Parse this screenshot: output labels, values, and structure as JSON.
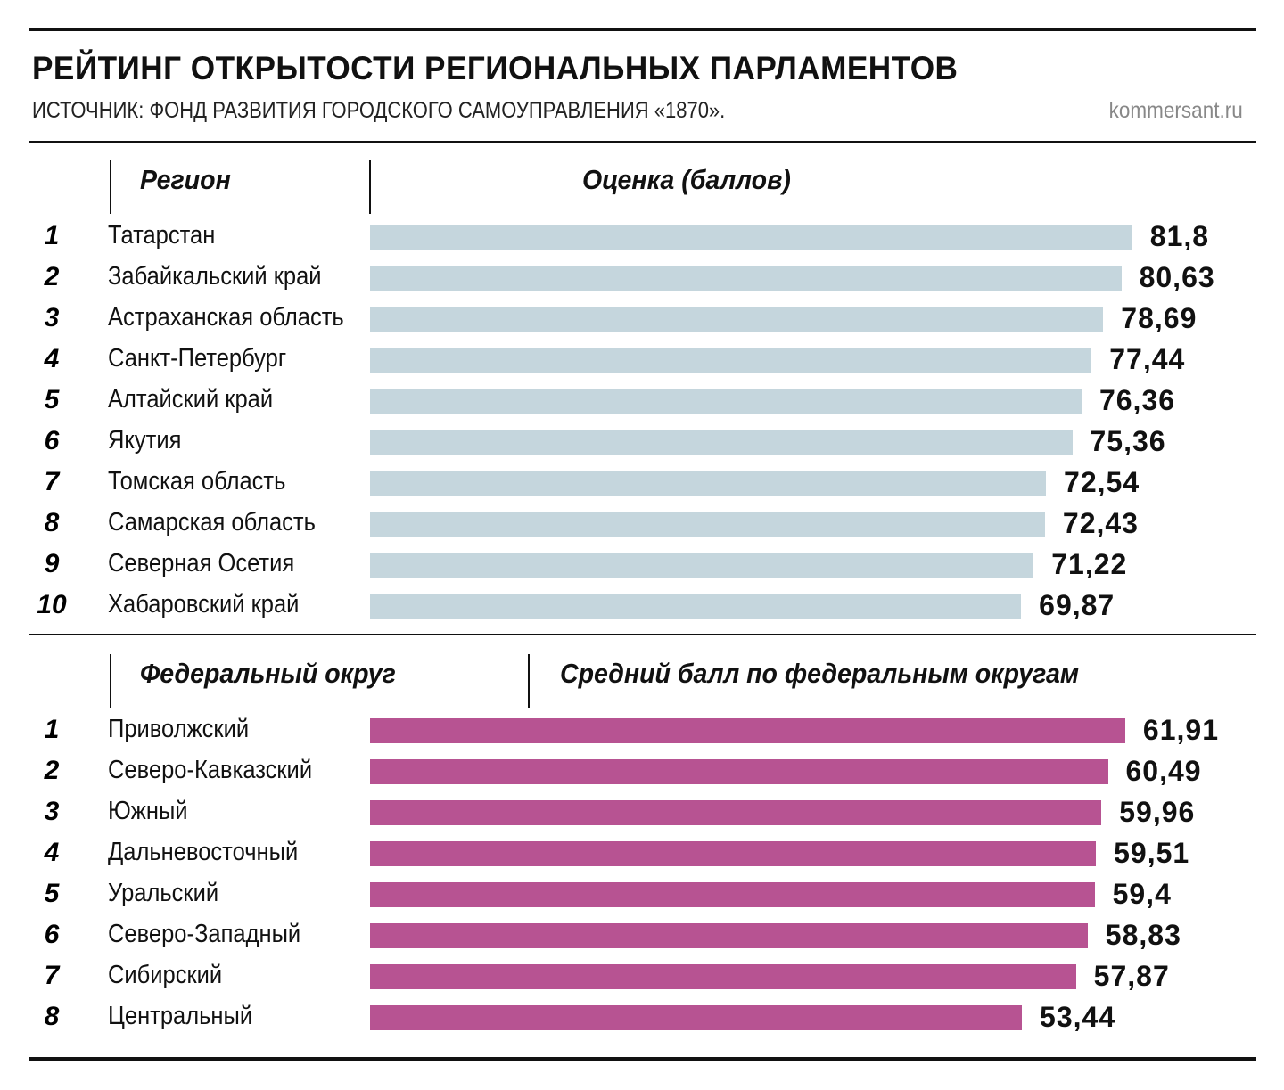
{
  "title": "РЕЙТИНГ ОТКРЫТОСТИ РЕГИОНАЛЬНЫХ ПАРЛАМЕНТОВ",
  "source": "ИСТОЧНИК: ФОНД РАЗВИТИЯ ГОРОДСКОГО САМОУПРАВЛЕНИЯ «1870».",
  "credit": "kommersant.ru",
  "chart_data": [
    {
      "type": "bar",
      "orientation": "horizontal",
      "label_header": "Регион",
      "value_header": "Оценка (баллов)",
      "color": "#c5d6dd",
      "ranks": [
        "1",
        "2",
        "3",
        "4",
        "5",
        "6",
        "7",
        "8",
        "9",
        "10"
      ],
      "categories": [
        "Татарстан",
        "Забайкальский край",
        "Астраханская область",
        "Санкт-Петербург",
        "Алтайский край",
        "Якутия",
        "Томская область",
        "Самарская область",
        "Северная Осетия",
        "Хабаровский край"
      ],
      "values": [
        81.8,
        80.63,
        78.69,
        77.44,
        76.36,
        75.36,
        72.54,
        72.43,
        71.22,
        69.87
      ],
      "value_labels": [
        "81,8",
        "80,63",
        "78,69",
        "77,44",
        "76,36",
        "75,36",
        "72,54",
        "72,43",
        "71,22",
        "69,87"
      ]
    },
    {
      "type": "bar",
      "orientation": "horizontal",
      "label_header": "Федеральный округ",
      "value_header": "Средний балл по федеральным округам",
      "color": "#b75392",
      "ranks": [
        "1",
        "2",
        "3",
        "4",
        "5",
        "6",
        "7",
        "8"
      ],
      "categories": [
        "Приволжский",
        "Северо-Кавказский",
        "Южный",
        "Дальневосточный",
        "Уральский",
        "Северо-Западный",
        "Сибирский",
        "Центральный"
      ],
      "values": [
        61.91,
        60.49,
        59.96,
        59.51,
        59.4,
        58.83,
        57.87,
        53.44
      ],
      "value_labels": [
        "61,91",
        "60,49",
        "59,96",
        "59,51",
        "59,4",
        "58,83",
        "57,87",
        "53,44"
      ]
    }
  ]
}
